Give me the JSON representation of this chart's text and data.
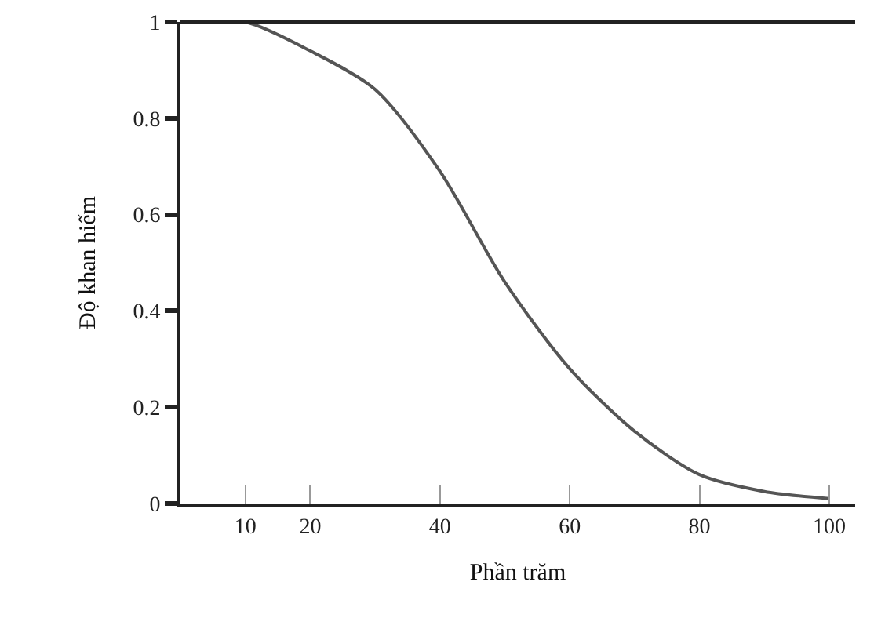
{
  "chart_data": {
    "type": "line",
    "xlabel": "Phần trăm",
    "ylabel": "Độ khan hiếm",
    "x": [
      0,
      10,
      20,
      30,
      40,
      50,
      60,
      70,
      80,
      90,
      100
    ],
    "series": [
      {
        "color": "#555555",
        "values": [
          1,
          1,
          0.94,
          0.86,
          0.69,
          0.46,
          0.28,
          0.15,
          0.06,
          0.025,
          0.01
        ]
      }
    ],
    "xlim": [
      0,
      104
    ],
    "xticks": [
      10,
      20,
      40,
      60,
      80,
      100
    ],
    "ylim": [
      0,
      1
    ],
    "yticks": [
      0,
      0.2,
      0.4,
      0.6,
      0.8,
      1
    ],
    "grid": false,
    "marker": "none",
    "line_style": "solid"
  }
}
